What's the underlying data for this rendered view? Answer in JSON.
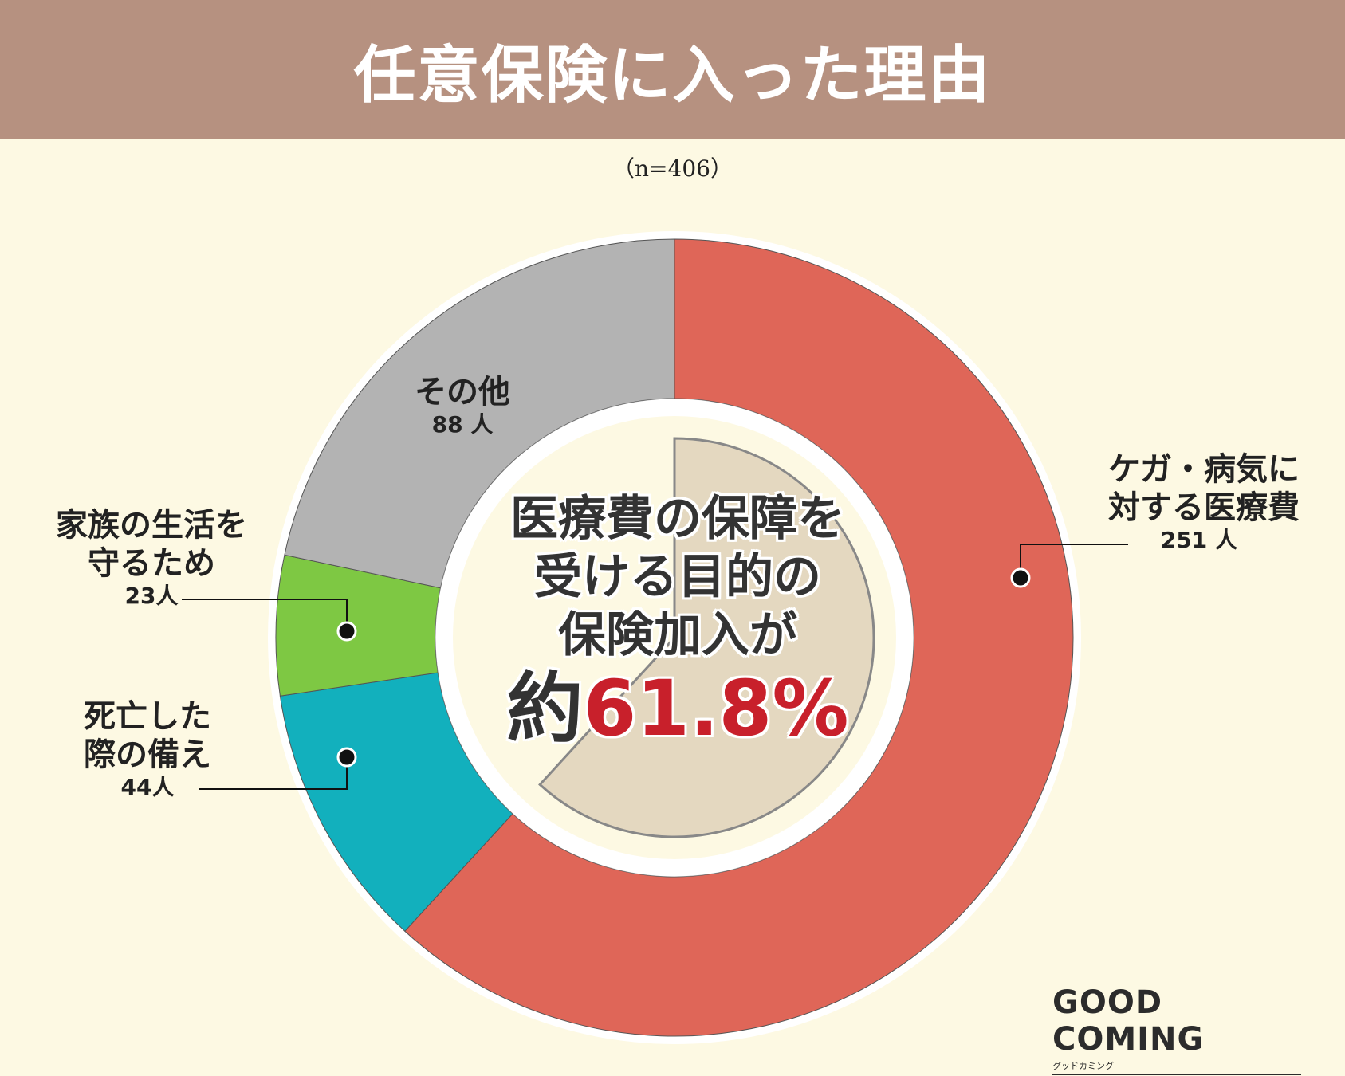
{
  "title": "任意保険に入った理由",
  "sample_size": "（n=406）",
  "center": {
    "line1": "医療費の保障を",
    "line2": "受ける目的の",
    "line3": "保険加入が",
    "prefix": "約",
    "percent": "61.8%"
  },
  "logo": {
    "brand": "GOOD COMING",
    "sub": "グッドカミング"
  },
  "chart_data": {
    "type": "pie",
    "donut": true,
    "total": 406,
    "unit": "人",
    "slices": [
      {
        "name": "ケガ・病気に対する医療費",
        "name_line1": "ケガ・病気に",
        "name_line2": "対する医療費",
        "value": 251,
        "count_label": "251 人",
        "color": "#df6658"
      },
      {
        "name": "死亡した際の備え",
        "name_line1": "死亡した",
        "name_line2": "際の備え",
        "value": 44,
        "count_label": "44人",
        "color": "#12b0bd"
      },
      {
        "name": "家族の生活を守るため",
        "name_line1": "家族の生活を",
        "name_line2": "守るため",
        "value": 23,
        "count_label": "23人",
        "color": "#7ec843"
      },
      {
        "name": "その他",
        "name_line1": "その他",
        "name_line2": "",
        "value": 88,
        "count_label": "88 人",
        "color": "#b3b3b3"
      }
    ],
    "highlight_percent": 61.8
  }
}
